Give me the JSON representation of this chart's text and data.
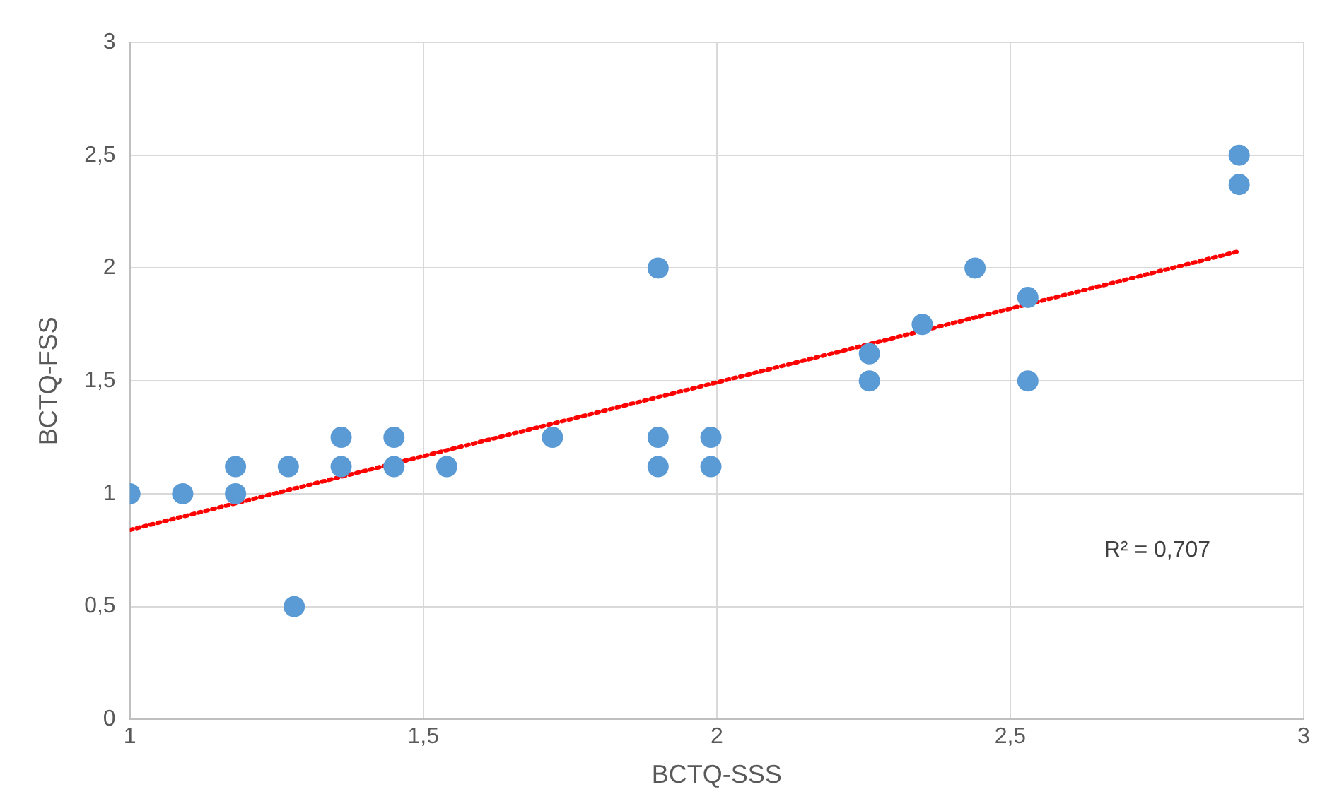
{
  "chart_data": {
    "type": "scatter",
    "xlabel": "BCTQ-SSS",
    "ylabel": "BCTQ-FSS",
    "xlim": [
      1,
      3
    ],
    "xticks": [
      1,
      {
        "value": 1.5,
        "label": "1,5"
      },
      2,
      {
        "value": 2.5,
        "label": "2,5"
      },
      3
    ],
    "ylim": [
      0,
      3
    ],
    "yticks": [
      0,
      {
        "value": 0.5,
        "label": "0,5"
      },
      1,
      {
        "value": 1.5,
        "label": "1,5"
      },
      2,
      {
        "value": 2.5,
        "label": "2,5"
      },
      3
    ],
    "grid": true,
    "legend": false,
    "marker": "circle",
    "annotations": [
      "R² = 0,707"
    ],
    "series": [
      {
        "type": "scatter",
        "color": "#5b9bd5",
        "x": [
          1,
          1.09,
          1.18,
          1.18,
          1.27,
          1.28,
          1.36,
          1.36,
          1.45,
          1.45,
          1.54,
          1.72,
          1.9,
          1.9,
          1.9,
          1.99,
          1.99,
          2.26,
          2.26,
          2.35,
          2.44,
          2.53,
          2.53,
          2.89,
          2.89
        ],
        "values": [
          1,
          1,
          1.12,
          1,
          1.12,
          0.5,
          1.25,
          1.12,
          1.25,
          1.12,
          1.12,
          1.25,
          2,
          1.25,
          1.12,
          1.25,
          1.12,
          1.62,
          1.5,
          1.75,
          2,
          1.87,
          1.5,
          2.5,
          2.37
        ]
      },
      {
        "type": "line",
        "color": "#ff0000",
        "line_style": "dotted",
        "marker": "none",
        "x": [
          1,
          2.89
        ],
        "values": [
          0.84,
          2.075
        ]
      }
    ]
  }
}
